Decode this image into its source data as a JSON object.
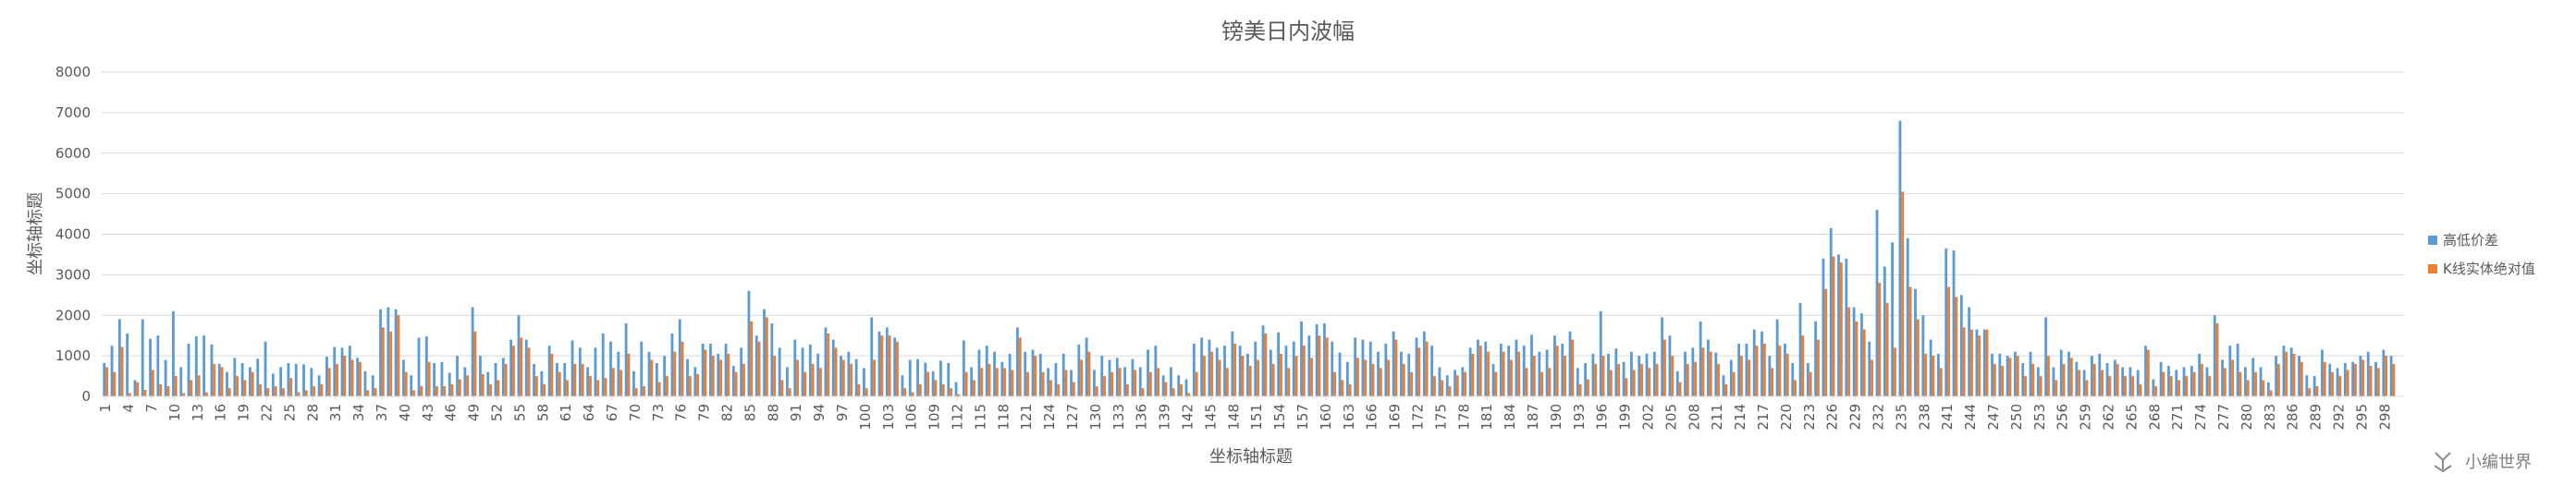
{
  "chart_data": {
    "type": "bar",
    "title": "镑美日内波幅",
    "xlabel": "坐标轴标题",
    "ylabel": "坐标轴标题",
    "ylim": [
      0,
      8000
    ],
    "yticks": [
      0,
      1000,
      2000,
      3000,
      4000,
      5000,
      6000,
      7000,
      8000
    ],
    "grid": true,
    "legend_position": "right",
    "x_start": 1,
    "x_end": 300,
    "x_tick_step": 3,
    "colors": {
      "高低价差": "#5b9bd5",
      "K线实体绝对值": "#ed7d31"
    },
    "series": [
      {
        "name": "高低价差",
        "color": "#5b9bd5",
        "values": [
          820,
          1250,
          1900,
          1550,
          400,
          1900,
          1420,
          1500,
          900,
          2100,
          720,
          1300,
          1480,
          1500,
          1280,
          800,
          600,
          950,
          820,
          720,
          930,
          1350,
          560,
          720,
          820,
          800,
          790,
          700,
          520,
          980,
          1220,
          1200,
          1250,
          950,
          620,
          520,
          2150,
          2200,
          2150,
          900,
          520,
          1450,
          1480,
          820,
          850,
          580,
          1000,
          720,
          2200,
          1000,
          600,
          820,
          950,
          1400,
          2000,
          1400,
          800,
          620,
          1250,
          820,
          820,
          1380,
          1200,
          720,
          1200,
          1550,
          1350,
          1100,
          1800,
          620,
          1350,
          1100,
          820,
          1000,
          1550,
          1900,
          920,
          720,
          1300,
          1300,
          1050,
          1300,
          750,
          1200,
          2600,
          1500,
          2150,
          1800,
          1200,
          720,
          1400,
          1200,
          1280,
          1050,
          1700,
          1400,
          1000,
          1100,
          920,
          700,
          1950,
          1600,
          1700,
          1450,
          520,
          900,
          920,
          830,
          620,
          880,
          820,
          350,
          1380,
          720,
          1150,
          1250,
          1100,
          850,
          1050,
          1700,
          1100,
          1150,
          1050,
          700,
          820,
          1050,
          650,
          1280,
          1450,
          650,
          1000,
          900,
          950,
          720,
          920,
          720,
          1150,
          1250,
          520,
          720,
          520,
          420,
          1300,
          1450,
          1400,
          1200,
          1250,
          1600,
          1250,
          1050,
          1350,
          1750,
          1150,
          1580,
          1250,
          1350,
          1850,
          1500,
          1780,
          1800,
          1350,
          1080,
          850,
          1450,
          1400,
          1350,
          1100,
          1300,
          1600,
          1100,
          1050,
          1450,
          1600,
          1250,
          720,
          520,
          650,
          720,
          1200,
          1400,
          1350,
          800,
          1300,
          1250,
          1400,
          1250,
          1520,
          1100,
          1150,
          1500,
          1300,
          1600,
          700,
          820,
          1050,
          2100,
          1050,
          1180,
          850,
          1100,
          1000,
          1050,
          1100,
          1950,
          1500,
          620,
          1100,
          1200,
          1850,
          1400,
          1080,
          520,
          900,
          1300,
          1300,
          1650,
          1600,
          1000,
          1900,
          1300,
          820,
          2300,
          820,
          1850,
          3400,
          4150,
          3500,
          3400,
          2200,
          2050,
          1350,
          4600,
          3200,
          3800,
          6800,
          3900,
          2650,
          2000,
          1400,
          1050,
          3650,
          3600,
          2500,
          2200,
          1650,
          1650,
          1050,
          1050,
          1000,
          1100,
          820,
          1100,
          720,
          1950,
          720,
          1150,
          1100,
          850,
          650,
          1000,
          1050,
          820,
          900,
          720,
          720,
          650,
          1250,
          420,
          850,
          750,
          650,
          720,
          750,
          1050,
          720,
          2000,
          900,
          1250,
          1300,
          720,
          950,
          720,
          350,
          1000,
          1250,
          1200,
          1000,
          520,
          500,
          1150,
          800,
          700,
          820,
          850,
          1000,
          1100,
          850,
          1150,
          1000
        ]
      },
      {
        "name": "K线实体绝对值",
        "color": "#ed7d31",
        "values": [
          720,
          600,
          1220,
          80,
          350,
          160,
          650,
          300,
          250,
          500,
          80,
          400,
          520,
          100,
          800,
          720,
          200,
          500,
          400,
          600,
          300,
          200,
          250,
          200,
          450,
          100,
          150,
          250,
          300,
          700,
          800,
          1000,
          900,
          850,
          150,
          200,
          1700,
          1600,
          2000,
          600,
          150,
          250,
          850,
          250,
          250,
          300,
          420,
          520,
          1600,
          550,
          300,
          400,
          800,
          1250,
          1450,
          1200,
          500,
          300,
          1050,
          600,
          400,
          800,
          800,
          500,
          400,
          450,
          700,
          650,
          1050,
          200,
          250,
          900,
          350,
          500,
          1100,
          1350,
          500,
          550,
          1150,
          1000,
          900,
          1050,
          600,
          800,
          1850,
          1350,
          1950,
          1000,
          400,
          200,
          900,
          600,
          800,
          700,
          1550,
          1200,
          900,
          800,
          300,
          200,
          900,
          1500,
          1500,
          1350,
          200,
          100,
          300,
          600,
          400,
          300,
          200,
          50,
          600,
          400,
          700,
          800,
          700,
          700,
          650,
          1450,
          600,
          1000,
          600,
          400,
          300,
          650,
          350,
          900,
          1100,
          250,
          500,
          600,
          700,
          300,
          650,
          200,
          600,
          700,
          350,
          200,
          300,
          80,
          600,
          1000,
          1100,
          900,
          700,
          1300,
          1000,
          750,
          900,
          1550,
          800,
          1050,
          700,
          1000,
          1250,
          950,
          1500,
          1450,
          600,
          400,
          300,
          950,
          900,
          800,
          700,
          900,
          1400,
          800,
          600,
          1200,
          1350,
          500,
          400,
          250,
          520,
          600,
          1050,
          1250,
          1100,
          600,
          1100,
          900,
          1100,
          700,
          1000,
          600,
          700,
          1250,
          1000,
          1400,
          300,
          420,
          800,
          1000,
          650,
          800,
          450,
          650,
          800,
          700,
          800,
          1400,
          1000,
          350,
          800,
          850,
          1200,
          1100,
          800,
          300,
          600,
          1000,
          900,
          1250,
          1300,
          700,
          1250,
          1050,
          400,
          1500,
          600,
          1400,
          2650,
          3450,
          3300,
          2200,
          1850,
          1650,
          900,
          2800,
          2300,
          1200,
          5050,
          2700,
          1900,
          1050,
          1000,
          700,
          2700,
          2450,
          1700,
          1650,
          1500,
          1650,
          800,
          750,
          950,
          1000,
          500,
          800,
          500,
          1000,
          400,
          800,
          950,
          650,
          400,
          800,
          650,
          500,
          800,
          500,
          500,
          300,
          1150,
          250,
          600,
          500,
          400,
          500,
          600,
          800,
          500,
          1800,
          700,
          900,
          600,
          400,
          600,
          400,
          150,
          800,
          1100,
          1050,
          850,
          200,
          250,
          850,
          600,
          500,
          650,
          800,
          900,
          750,
          700,
          1000,
          800
        ]
      }
    ]
  },
  "watermark": "小编世界"
}
